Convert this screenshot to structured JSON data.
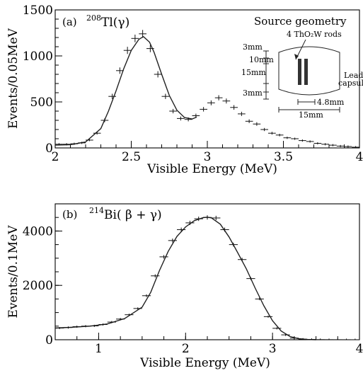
{
  "chart_data": [
    {
      "type": "scatter",
      "panel_label": "(a)",
      "title_isotope_mass": "208",
      "title_element": "Tl",
      "title_decay": "(γ)",
      "xlabel": "Visible Energy (MeV)",
      "ylabel": "Events/0.05MeV",
      "xlim": [
        2,
        4
      ],
      "ylim": [
        0,
        1500
      ],
      "xticks": [
        2,
        2.5,
        3,
        3.5,
        4
      ],
      "xtick_labels": [
        "2",
        "2.5",
        "3",
        "3.5",
        "4"
      ],
      "yticks": [
        0,
        500,
        1000,
        1500
      ],
      "ytick_labels": [
        "0",
        "500",
        "1000",
        "1500"
      ],
      "grid": false,
      "legend": "none",
      "series": [
        {
          "kind": "points",
          "x": [
            2.025,
            2.075,
            2.125,
            2.175,
            2.225,
            2.275,
            2.325,
            2.375,
            2.425,
            2.475,
            2.525,
            2.575,
            2.625,
            2.675,
            2.725,
            2.775,
            2.825,
            2.875,
            2.925,
            2.975,
            3.025,
            3.075,
            3.125,
            3.175,
            3.225,
            3.275,
            3.325,
            3.375,
            3.425,
            3.475,
            3.525,
            3.575,
            3.625,
            3.675,
            3.725,
            3.775,
            3.825,
            3.875,
            3.925,
            3.975
          ],
          "y": [
            40,
            40,
            45,
            55,
            85,
            160,
            300,
            560,
            840,
            1060,
            1190,
            1240,
            1080,
            800,
            560,
            400,
            320,
            310,
            350,
            420,
            490,
            545,
            510,
            440,
            370,
            290,
            260,
            200,
            160,
            140,
            110,
            100,
            80,
            70,
            50,
            40,
            30,
            20,
            15,
            8
          ]
        },
        {
          "kind": "fit",
          "x": [
            2.0,
            2.1,
            2.2,
            2.3,
            2.35,
            2.4,
            2.45,
            2.5,
            2.55,
            2.58,
            2.62,
            2.65,
            2.7,
            2.75,
            2.8,
            2.85,
            2.9,
            2.93
          ],
          "y": [
            30,
            35,
            65,
            210,
            400,
            620,
            860,
            1060,
            1180,
            1210,
            1150,
            1040,
            800,
            570,
            410,
            330,
            315,
            335
          ]
        }
      ]
    },
    {
      "type": "scatter",
      "panel_label": "(b)",
      "title_isotope_mass": "214",
      "title_element": "Bi",
      "title_decay": "( β + γ)",
      "xlabel": "Visible Energy (MeV)",
      "ylabel": "Events/0.1MeV",
      "xlim": [
        0.5,
        4
      ],
      "ylim": [
        0,
        5000
      ],
      "xticks": [
        1,
        2,
        3,
        4
      ],
      "xtick_labels": [
        "1",
        "2",
        "3",
        "4"
      ],
      "yticks": [
        0,
        2000,
        4000
      ],
      "ytick_labels": [
        "0",
        "2000",
        "4000"
      ],
      "grid": false,
      "legend": "none",
      "series": [
        {
          "kind": "points",
          "x": [
            0.55,
            0.65,
            0.75,
            0.85,
            0.95,
            1.05,
            1.15,
            1.25,
            1.35,
            1.45,
            1.55,
            1.65,
            1.75,
            1.85,
            1.95,
            2.05,
            2.15,
            2.25,
            2.35,
            2.45,
            2.55,
            2.65,
            2.75,
            2.85,
            2.95,
            3.05,
            3.15,
            3.25,
            3.35,
            3.45,
            3.55,
            3.65,
            3.75,
            3.85,
            3.95
          ],
          "y": [
            430,
            450,
            480,
            500,
            510,
            560,
            650,
            760,
            920,
            1150,
            1620,
            2350,
            3050,
            3650,
            4050,
            4300,
            4450,
            4500,
            4480,
            4050,
            3500,
            2950,
            2250,
            1500,
            850,
            420,
            180,
            60,
            20,
            10,
            5,
            3,
            2,
            1,
            0
          ]
        },
        {
          "kind": "fit",
          "x": [
            0.5,
            0.7,
            0.9,
            1.1,
            1.3,
            1.5,
            1.6,
            1.7,
            1.8,
            1.9,
            2.0,
            2.1,
            2.2,
            2.25,
            2.3,
            2.4,
            2.5,
            2.6,
            2.7,
            2.8,
            2.9,
            3.0,
            3.1,
            3.2,
            3.3,
            3.4,
            3.5
          ],
          "y": [
            430,
            460,
            500,
            580,
            780,
            1200,
            1750,
            2550,
            3250,
            3800,
            4150,
            4380,
            4490,
            4510,
            4480,
            4250,
            3780,
            3200,
            2600,
            1900,
            1250,
            700,
            320,
            120,
            40,
            10,
            0
          ]
        }
      ]
    }
  ],
  "source_geometry": {
    "title": "Source geometry",
    "rods_label": "4 ThO₂W rods",
    "capsule_label_line1": "Lead",
    "capsule_label_line2": "capsule",
    "dim_top": "3mm",
    "dim_inner": "10mm",
    "dim_body": "15mm",
    "dim_bottom": "3mm",
    "dim_rod_width": "4.8mm",
    "dim_width": "15mm"
  }
}
